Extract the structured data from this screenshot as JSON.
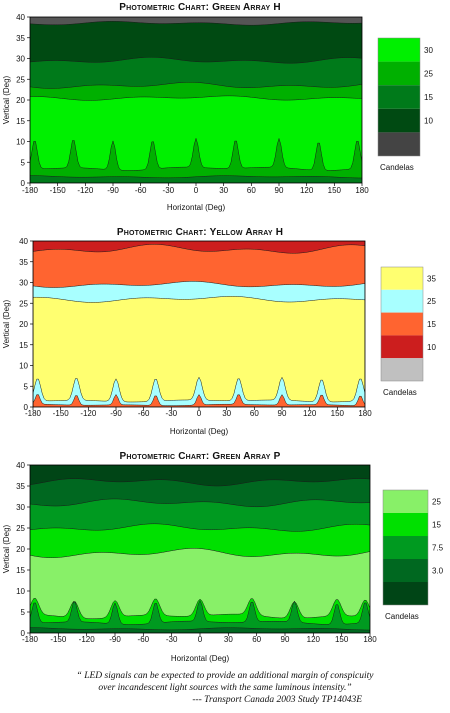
{
  "chart_data": [
    {
      "type": "heatmap",
      "subtype": "contour",
      "title": "Photometric Chart: Green Array H",
      "xlabel": "Horizontal (Deg)",
      "ylabel": "Vertical (Deg)",
      "xlim": [
        -180,
        180
      ],
      "ylim": [
        0,
        40
      ],
      "x_ticks": [
        -180,
        -150,
        -120,
        -90,
        -60,
        -30,
        0,
        30,
        60,
        90,
        120,
        150,
        180
      ],
      "y_ticks": [
        0,
        5,
        10,
        15,
        20,
        25,
        30,
        35,
        40
      ],
      "legend_title": "Candelas",
      "legend_ticks": [
        "30",
        "25",
        "15",
        "10"
      ],
      "levels": [
        {
          "label": "30",
          "color": "#00f000"
        },
        {
          "label": "25",
          "color": "#00b000"
        },
        {
          "label": "15",
          "color": "#007a1a"
        },
        {
          "label": "10",
          "color": "#004a12"
        },
        {
          "label": "",
          "color": "#444444"
        }
      ],
      "bands_bottom_to_top": [
        {
          "color": "#007a1a",
          "upper": {
            "base": 1.5,
            "amp": 0.3
          }
        },
        {
          "color": "#00b000",
          "upper": {
            "base": 3.5,
            "amp": 0.5
          },
          "peaks": {
            "height": 7,
            "width": 6
          }
        },
        {
          "color": "#00f000",
          "upper": {
            "base": 20.5,
            "amp": 0.6
          }
        },
        {
          "color": "#00b000",
          "upper": {
            "base": 23.5,
            "amp": 0.8
          }
        },
        {
          "color": "#007a1a",
          "upper": {
            "base": 29.5,
            "amp": 0.8
          }
        },
        {
          "color": "#004a12",
          "upper": {
            "base": 38.5,
            "amp": 0.5
          }
        },
        {
          "color": "#555555",
          "upper": {
            "base": 40,
            "amp": 0
          }
        }
      ],
      "peak_x": [
        -175,
        -133,
        -90,
        -47,
        0,
        43,
        90,
        133,
        175
      ]
    },
    {
      "type": "heatmap",
      "subtype": "contour",
      "title": "Photometric Chart: Yellow Array H",
      "xlabel": "Horizontal (Deg)",
      "ylabel": "Vertical (Deg)",
      "xlim": [
        -180,
        180
      ],
      "ylim": [
        0,
        40
      ],
      "x_ticks": [
        -180,
        -150,
        -120,
        -90,
        -60,
        -30,
        0,
        30,
        60,
        90,
        120,
        150,
        180
      ],
      "y_ticks": [
        0,
        5,
        10,
        15,
        20,
        25,
        30,
        35,
        40
      ],
      "legend_title": "Candelas",
      "legend_ticks": [
        "35",
        "25",
        "15",
        "10"
      ],
      "levels": [
        {
          "label": "35",
          "color": "#ffff70"
        },
        {
          "label": "25",
          "color": "#a8ffff"
        },
        {
          "label": "15",
          "color": "#ff6430"
        },
        {
          "label": "10",
          "color": "#cc1e1e"
        },
        {
          "label": "",
          "color": "#c0c0c0"
        }
      ],
      "bands_bottom_to_top": [
        {
          "color": "#ff6430",
          "upper": {
            "base": 0.5,
            "amp": 0.2
          },
          "peaks": {
            "height": 2.5,
            "width": 5
          }
        },
        {
          "color": "#a8ffff",
          "upper": {
            "base": 1.5,
            "amp": 0.3
          },
          "peaks": {
            "height": 5.5,
            "width": 7
          }
        },
        {
          "color": "#ffff70",
          "upper": {
            "base": 26,
            "amp": 0.8
          }
        },
        {
          "color": "#a8ffff",
          "upper": {
            "base": 29.5,
            "amp": 0.8
          }
        },
        {
          "color": "#ff6430",
          "upper": {
            "base": 38,
            "amp": 1.2
          }
        },
        {
          "color": "#cc1e1e",
          "upper": {
            "base": 40,
            "amp": 0
          }
        }
      ],
      "peak_x": [
        -175,
        -133,
        -90,
        -47,
        0,
        43,
        90,
        133,
        175
      ]
    },
    {
      "type": "heatmap",
      "subtype": "contour",
      "title": "Photometric Chart: Green Array P",
      "xlabel": "Horizontal (Deg)",
      "ylabel": "Vertical (Deg)",
      "xlim": [
        -180,
        180
      ],
      "ylim": [
        0,
        40
      ],
      "x_ticks": [
        -180,
        -150,
        -120,
        -90,
        -60,
        -30,
        0,
        30,
        60,
        90,
        120,
        150,
        180
      ],
      "y_ticks": [
        0,
        5,
        10,
        15,
        20,
        25,
        30,
        35,
        40
      ],
      "legend_title": "Candelas",
      "legend_ticks": [
        "25",
        "15",
        "7.5",
        "3.0"
      ],
      "levels": [
        {
          "label": "",
          "color": "#88f068"
        },
        {
          "label": "25",
          "color": "#00e000"
        },
        {
          "label": "15",
          "color": "#009a20"
        },
        {
          "label": "7.5",
          "color": "#006820"
        },
        {
          "label": "3.0",
          "color": "#004516"
        }
      ],
      "bands_bottom_to_top": [
        {
          "color": "#006820",
          "upper": {
            "base": 1,
            "amp": 0.3
          }
        },
        {
          "color": "#009a20",
          "upper": {
            "base": 2.5,
            "amp": 0.5
          },
          "peaks": {
            "height": 5,
            "width": 6
          }
        },
        {
          "color": "#00e000",
          "upper": {
            "base": 4,
            "amp": 0.6
          },
          "peaks": {
            "height": 4,
            "width": 9
          }
        },
        {
          "color": "#88f068",
          "upper": {
            "base": 19,
            "amp": 1.2
          }
        },
        {
          "color": "#00e000",
          "upper": {
            "base": 25,
            "amp": 1.0
          }
        },
        {
          "color": "#009a20",
          "upper": {
            "base": 31,
            "amp": 1.0
          }
        },
        {
          "color": "#006820",
          "upper": {
            "base": 36,
            "amp": 1.0
          }
        },
        {
          "color": "#004516",
          "upper": {
            "base": 40,
            "amp": 0
          }
        }
      ],
      "peak_x": [
        -175,
        -133,
        -90,
        -47,
        0,
        55,
        100,
        145,
        175
      ]
    }
  ],
  "quote": {
    "line1": "“ LED signals can be expected to provide an additional margin of conspicuity",
    "line2": "over incandescent light sources with the same luminous intensity.”",
    "source": "--- Transport Canada 2003 Study TP14043E"
  }
}
